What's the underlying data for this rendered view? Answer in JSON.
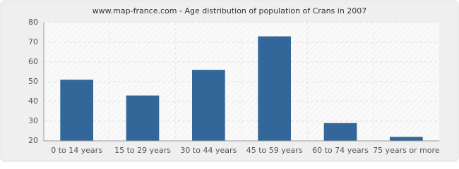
{
  "chart_data": {
    "type": "bar",
    "title": "www.map-france.com - Age distribution of population of Crans in 2007",
    "categories": [
      "0 to 14 years",
      "15 to 29 years",
      "30 to 44 years",
      "45 to 59 years",
      "60 to 74 years",
      "75 years or more"
    ],
    "values": [
      51,
      43,
      56,
      73,
      29,
      22
    ],
    "color": "#336699",
    "ylim": [
      20,
      80
    ],
    "yticks": [
      20,
      30,
      40,
      50,
      60,
      70,
      80
    ],
    "grid": true
  }
}
